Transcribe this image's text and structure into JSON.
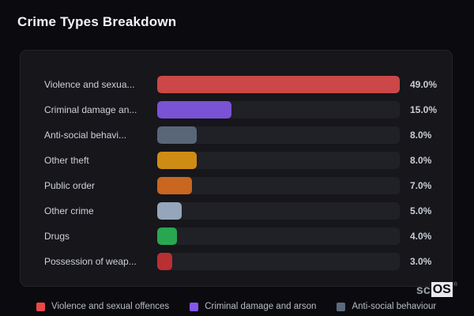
{
  "title": "Crime Types Breakdown",
  "colors": {
    "page_bg": "#0b0b0f",
    "panel_bg": "#16161b",
    "track_bg": "#202027",
    "title_text": "#f2f3f6",
    "category_text": "#ced2d9",
    "value_text": "#c9cdd4",
    "legend_text": "#b7bcc4"
  },
  "chart_data": {
    "type": "bar",
    "orientation": "horizontal",
    "title": "Crime Types Breakdown",
    "unit": "%",
    "xlim": [
      0,
      49
    ],
    "grid": false,
    "legend_position": "bottom",
    "categories": [
      "Violence and sexua...",
      "Criminal damage an...",
      "Anti-social behavi...",
      "Other theft",
      "Public order",
      "Other crime",
      "Drugs",
      "Possession of weap..."
    ],
    "values": [
      49.0,
      15.0,
      8.0,
      8.0,
      7.0,
      5.0,
      4.0,
      3.0
    ],
    "value_labels": [
      "49.0%",
      "15.0%",
      "8.0%",
      "8.0%",
      "7.0%",
      "5.0%",
      "4.0%",
      "3.0%"
    ],
    "bar_colors": [
      "#cc4747",
      "#7a52d4",
      "#596678",
      "#cf8c15",
      "#c9661f",
      "#96a6ba",
      "#28a750",
      "#b92f32"
    ]
  },
  "legend": {
    "items": [
      {
        "label": "Violence and sexual offences",
        "color": "#e84848"
      },
      {
        "label": "Criminal damage and arson",
        "color": "#8556ea"
      },
      {
        "label": "Anti-social behaviour",
        "color": "#5a6a7e"
      }
    ]
  },
  "watermark": {
    "prefix": "sc",
    "suffix": "OS",
    "registered": "®"
  }
}
